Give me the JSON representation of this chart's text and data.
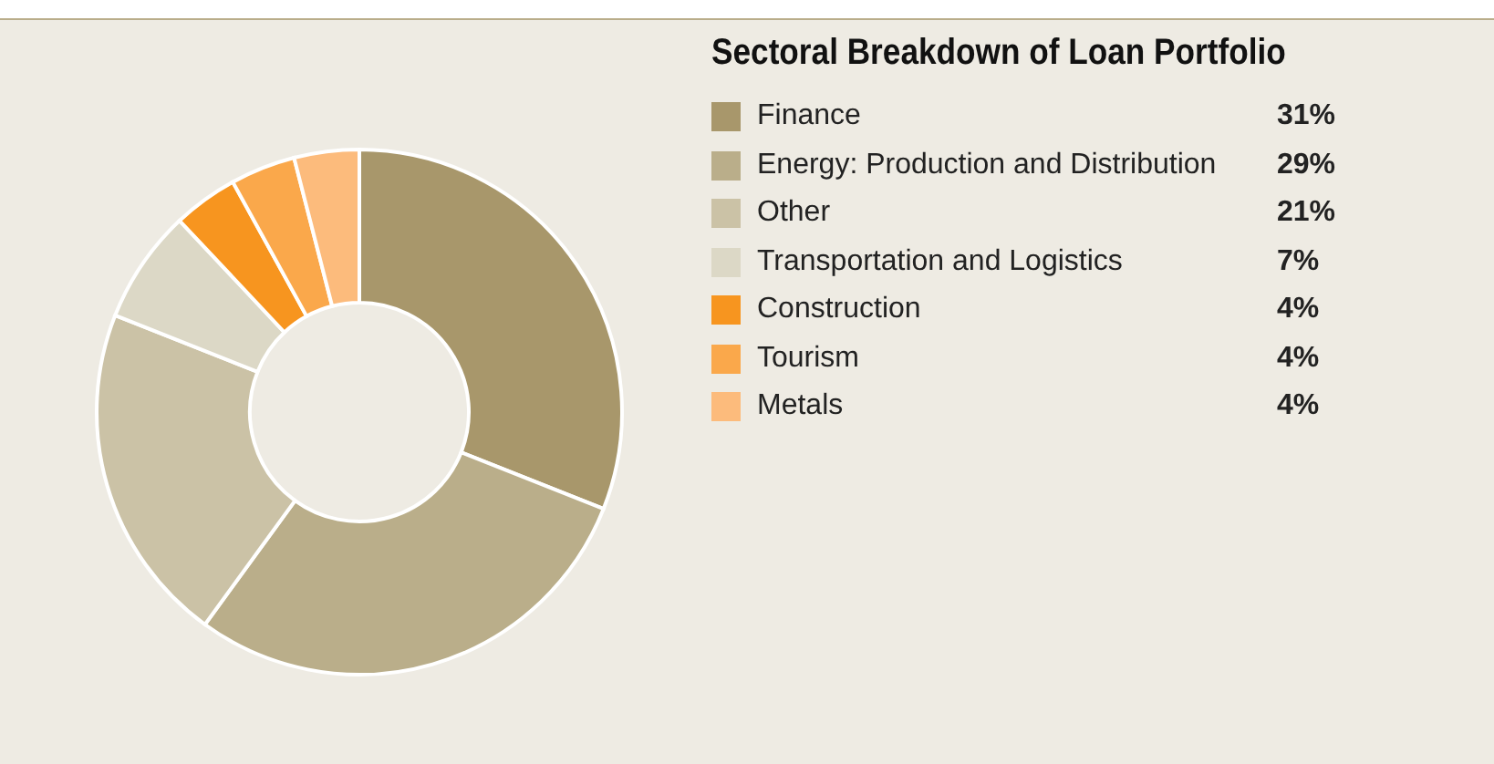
{
  "chart_data": {
    "type": "donut",
    "title": "Sectoral Breakdown of Loan Portfolio",
    "categories": [
      "Finance",
      "Energy: Production and Distribution",
      "Other",
      "Transportation and Logistics",
      "Construction",
      "Tourism",
      "Metals"
    ],
    "values": [
      31,
      29,
      21,
      7,
      4,
      4,
      4
    ],
    "colors": [
      "#a8976b",
      "#baae8a",
      "#cbc2a6",
      "#dcd8c6",
      "#f7951f",
      "#faa84b",
      "#fcbb7c"
    ],
    "value_labels": [
      "31%",
      "29%",
      "21%",
      "7%",
      "4%",
      "4%",
      "4%"
    ],
    "legend": "right"
  }
}
